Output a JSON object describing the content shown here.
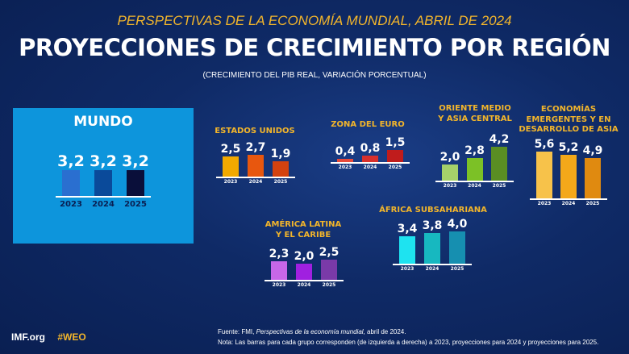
{
  "header": {
    "subtitle": "PERSPECTIVAS DE LA ECONOMÍA MUNDIAL, ABRIL DE 2024",
    "title": "PROYECCIONES DE CRECIMIENTO POR REGIÓN",
    "note": "(CRECIMIENTO DEL PIB REAL, VARIACIÓN PORCENTUAL)"
  },
  "chart_data": {
    "type": "bar",
    "categories": [
      "2023",
      "2024",
      "2025"
    ],
    "groups": [
      {
        "id": "mundo",
        "title": "MUNDO",
        "values_label": [
          "3,2",
          "3,2",
          "3,2"
        ],
        "values": [
          3.2,
          3.2,
          3.2
        ],
        "colors": [
          "#2a6fd0",
          "#0a4a9a",
          "#0a0f3a"
        ]
      },
      {
        "id": "us",
        "title": "ESTADOS UNIDOS",
        "values_label": [
          "2,5",
          "2,7",
          "1,9"
        ],
        "values": [
          2.5,
          2.7,
          1.9
        ],
        "colors": [
          "#f2a900",
          "#e8570e",
          "#d4420f"
        ]
      },
      {
        "id": "euro",
        "title": "ZONA DEL EURO",
        "values_label": [
          "0,4",
          "0,8",
          "1,5"
        ],
        "values": [
          0.4,
          0.8,
          1.5
        ],
        "colors": [
          "#e84a3a",
          "#d8302c",
          "#c01c1c"
        ]
      },
      {
        "id": "me",
        "title": "ORIENTE MEDIO\nY ASIA CENTRAL",
        "values_label": [
          "2,0",
          "2,8",
          "4,2"
        ],
        "values": [
          2.0,
          2.8,
          4.2
        ],
        "colors": [
          "#a5d16a",
          "#7cc126",
          "#5a8e23"
        ]
      },
      {
        "id": "asia",
        "title": "ECONOMÍAS\nEMERGENTES Y EN\nDESARROLLO DE ASIA",
        "values_label": [
          "5,6",
          "5,2",
          "4,9"
        ],
        "values": [
          5.6,
          5.2,
          4.9
        ],
        "colors": [
          "#f7c24a",
          "#f4a81a",
          "#e08a10"
        ]
      },
      {
        "id": "latam",
        "title": "AMÉRICA LATINA\nY EL CARIBE",
        "values_label": [
          "2,3",
          "2,0",
          "2,5"
        ],
        "values": [
          2.3,
          2.0,
          2.5
        ],
        "colors": [
          "#c767e8",
          "#a020e0",
          "#7a3aa8"
        ]
      },
      {
        "id": "africa",
        "title": "ÁFRICA SUBSAHARIANA",
        "values_label": [
          "3,4",
          "3,8",
          "4,0"
        ],
        "values": [
          3.4,
          3.8,
          4.0
        ],
        "colors": [
          "#1ee3f0",
          "#17b8c0",
          "#168fb0"
        ]
      }
    ]
  },
  "footer": {
    "site": "IMF.org",
    "hashtag": "#WEO",
    "source_prefix": "Fuente: FMI, ",
    "source_title": "Perspectivas de la economía mundial",
    "source_suffix": ", abril de 2024.",
    "note": "Nota: Las barras para cada grupo corresponden (de izquierda a derecha) a 2023, proyecciones para 2024 y proyecciones para 2025."
  }
}
